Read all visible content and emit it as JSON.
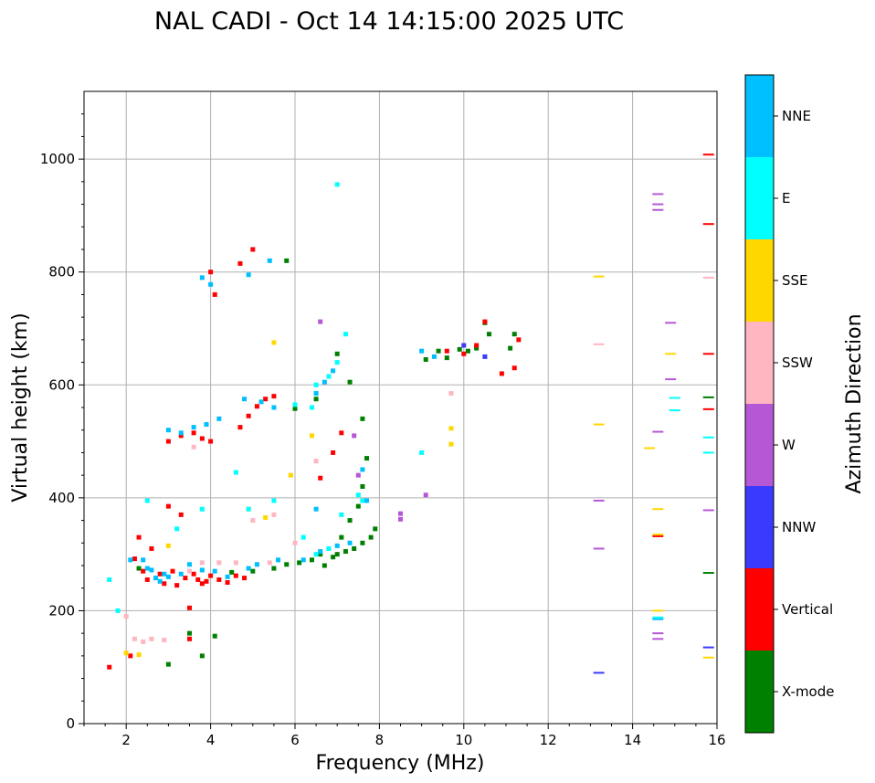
{
  "chart_data": {
    "type": "scatter",
    "title": "NAL CADI - Oct 14 14:15:00 2025 UTC",
    "xlabel": "Frequency (MHz)",
    "ylabel": "Virtual height (km)",
    "xlim": [
      1,
      16
    ],
    "ylim": [
      0,
      1120
    ],
    "xticks": [
      2,
      4,
      6,
      8,
      10,
      12,
      14,
      16
    ],
    "yticks": [
      0,
      200,
      400,
      600,
      800,
      1000
    ],
    "x_tick_labels": [
      "2",
      "4",
      "6",
      "8",
      "10",
      "12",
      "14",
      "16"
    ],
    "y_tick_labels": [
      "0",
      "200",
      "400",
      "600",
      "800",
      "1000"
    ],
    "grid": true,
    "colorbar": {
      "label": "Azimuth Direction",
      "categories": [
        {
          "name": "X-mode",
          "color": "#008000"
        },
        {
          "name": "Vertical",
          "color": "#ff0000"
        },
        {
          "name": "NNW",
          "color": "#3a3aff"
        },
        {
          "name": "W",
          "color": "#b657d6"
        },
        {
          "name": "SSW",
          "color": "#ffb6c1"
        },
        {
          "name": "SSE",
          "color": "#ffd700"
        },
        {
          "name": "E",
          "color": "#00ffff"
        },
        {
          "name": "NNE",
          "color": "#00bfff"
        }
      ]
    },
    "series": [
      {
        "name": "X-mode",
        "points": [
          [
            2.3,
            275
          ],
          [
            3.0,
            105
          ],
          [
            3.5,
            160
          ],
          [
            3.8,
            120
          ],
          [
            4.1,
            155
          ],
          [
            4.5,
            268
          ],
          [
            5.0,
            270
          ],
          [
            5.5,
            275
          ],
          [
            5.8,
            282
          ],
          [
            6.1,
            285
          ],
          [
            6.4,
            290
          ],
          [
            6.7,
            280
          ],
          [
            6.9,
            295
          ],
          [
            7.0,
            300
          ],
          [
            7.2,
            305
          ],
          [
            7.4,
            310
          ],
          [
            7.6,
            320
          ],
          [
            7.8,
            330
          ],
          [
            7.9,
            345
          ],
          [
            6.6,
            300
          ],
          [
            7.1,
            330
          ],
          [
            7.3,
            360
          ],
          [
            7.5,
            385
          ],
          [
            7.6,
            420
          ],
          [
            7.7,
            470
          ],
          [
            7.6,
            540
          ],
          [
            7.3,
            605
          ],
          [
            7.0,
            655
          ],
          [
            6.5,
            575
          ],
          [
            6.0,
            558
          ],
          [
            9.1,
            645
          ],
          [
            9.4,
            660
          ],
          [
            9.6,
            648
          ],
          [
            9.9,
            663
          ],
          [
            10.1,
            660
          ],
          [
            10.3,
            665
          ],
          [
            10.5,
            710
          ],
          [
            10.6,
            690
          ],
          [
            11.1,
            665
          ],
          [
            11.2,
            690
          ],
          [
            15.8,
            578
          ],
          [
            15.8,
            267
          ],
          [
            5.8,
            820
          ]
        ]
      },
      {
        "name": "Vertical",
        "points": [
          [
            1.6,
            100
          ],
          [
            2.1,
            120
          ],
          [
            2.2,
            292
          ],
          [
            2.3,
            330
          ],
          [
            2.4,
            270
          ],
          [
            2.5,
            255
          ],
          [
            2.6,
            310
          ],
          [
            2.8,
            265
          ],
          [
            2.9,
            248
          ],
          [
            3.0,
            385
          ],
          [
            3.1,
            270
          ],
          [
            3.2,
            245
          ],
          [
            3.3,
            370
          ],
          [
            3.4,
            258
          ],
          [
            3.6,
            265
          ],
          [
            3.7,
            255
          ],
          [
            3.8,
            248
          ],
          [
            3.9,
            252
          ],
          [
            4.0,
            262
          ],
          [
            4.2,
            255
          ],
          [
            4.4,
            250
          ],
          [
            4.6,
            262
          ],
          [
            4.8,
            258
          ],
          [
            3.5,
            205
          ],
          [
            3.0,
            500
          ],
          [
            3.3,
            510
          ],
          [
            3.6,
            515
          ],
          [
            3.8,
            505
          ],
          [
            4.0,
            500
          ],
          [
            4.7,
            525
          ],
          [
            4.9,
            545
          ],
          [
            5.1,
            562
          ],
          [
            5.3,
            575
          ],
          [
            5.5,
            580
          ],
          [
            4.0,
            800
          ],
          [
            4.1,
            760
          ],
          [
            4.7,
            815
          ],
          [
            5.0,
            840
          ],
          [
            6.6,
            435
          ],
          [
            6.9,
            480
          ],
          [
            7.1,
            515
          ],
          [
            9.6,
            660
          ],
          [
            10.0,
            655
          ],
          [
            10.3,
            670
          ],
          [
            10.5,
            712
          ],
          [
            10.9,
            620
          ],
          [
            11.2,
            630
          ],
          [
            11.3,
            680
          ],
          [
            14.6,
            332
          ],
          [
            15.8,
            1008
          ],
          [
            15.8,
            885
          ],
          [
            15.8,
            655
          ],
          [
            15.8,
            557
          ],
          [
            3.5,
            150
          ]
        ]
      },
      {
        "name": "NNW",
        "points": [
          [
            10.0,
            670
          ],
          [
            10.5,
            650
          ],
          [
            13.2,
            90
          ],
          [
            15.8,
            135
          ]
        ]
      },
      {
        "name": "W",
        "points": [
          [
            9.1,
            405
          ],
          [
            8.5,
            372
          ],
          [
            8.5,
            362
          ],
          [
            13.2,
            395
          ],
          [
            13.2,
            310
          ],
          [
            14.6,
            938
          ],
          [
            14.6,
            920
          ],
          [
            14.6,
            910
          ],
          [
            14.9,
            710
          ],
          [
            14.9,
            610
          ],
          [
            14.6,
            517
          ],
          [
            15.8,
            378
          ],
          [
            14.6,
            160
          ],
          [
            14.6,
            150
          ],
          [
            7.5,
            440
          ],
          [
            7.4,
            510
          ],
          [
            6.6,
            712
          ]
        ]
      },
      {
        "name": "SSW",
        "points": [
          [
            2.0,
            190
          ],
          [
            2.2,
            150
          ],
          [
            2.4,
            145
          ],
          [
            2.6,
            150
          ],
          [
            2.9,
            148
          ],
          [
            3.5,
            270
          ],
          [
            3.8,
            285
          ],
          [
            4.2,
            285
          ],
          [
            4.6,
            285
          ],
          [
            5.4,
            285
          ],
          [
            3.6,
            490
          ],
          [
            5.0,
            360
          ],
          [
            5.5,
            370
          ],
          [
            6.0,
            320
          ],
          [
            13.2,
            672
          ],
          [
            15.8,
            790
          ],
          [
            9.7,
            585
          ],
          [
            6.5,
            465
          ]
        ]
      },
      {
        "name": "SSE",
        "points": [
          [
            2.0,
            125
          ],
          [
            2.3,
            122
          ],
          [
            3.0,
            315
          ],
          [
            4.9,
            380
          ],
          [
            5.3,
            365
          ],
          [
            5.9,
            440
          ],
          [
            6.4,
            510
          ],
          [
            9.7,
            523
          ],
          [
            9.7,
            495
          ],
          [
            13.2,
            792
          ],
          [
            13.2,
            530
          ],
          [
            14.6,
            380
          ],
          [
            14.6,
            335
          ],
          [
            14.6,
            200
          ],
          [
            14.9,
            655
          ],
          [
            14.4,
            488
          ],
          [
            15.8,
            117
          ],
          [
            5.5,
            675
          ]
        ]
      },
      {
        "name": "E",
        "points": [
          [
            1.6,
            255
          ],
          [
            1.8,
            200
          ],
          [
            2.5,
            395
          ],
          [
            3.2,
            345
          ],
          [
            3.8,
            380
          ],
          [
            4.6,
            445
          ],
          [
            4.9,
            380
          ],
          [
            5.5,
            395
          ],
          [
            6.2,
            330
          ],
          [
            6.5,
            300
          ],
          [
            6.8,
            310
          ],
          [
            7.1,
            370
          ],
          [
            7.5,
            405
          ],
          [
            7.6,
            395
          ],
          [
            6.0,
            565
          ],
          [
            6.4,
            560
          ],
          [
            6.8,
            615
          ],
          [
            7.0,
            640
          ],
          [
            7.2,
            690
          ],
          [
            9.0,
            480
          ],
          [
            14.6,
            188
          ],
          [
            15.0,
            577
          ],
          [
            15.0,
            555
          ],
          [
            15.8,
            507
          ],
          [
            15.8,
            480
          ],
          [
            7.0,
            955
          ],
          [
            6.5,
            600
          ]
        ]
      },
      {
        "name": "NNE",
        "points": [
          [
            2.1,
            290
          ],
          [
            2.4,
            290
          ],
          [
            2.6,
            272
          ],
          [
            2.7,
            258
          ],
          [
            2.8,
            252
          ],
          [
            2.9,
            265
          ],
          [
            3.0,
            260
          ],
          [
            3.3,
            265
          ],
          [
            3.5,
            282
          ],
          [
            3.8,
            272
          ],
          [
            4.1,
            270
          ],
          [
            4.4,
            260
          ],
          [
            4.9,
            275
          ],
          [
            5.1,
            282
          ],
          [
            5.6,
            290
          ],
          [
            6.2,
            290
          ],
          [
            6.6,
            305
          ],
          [
            7.0,
            315
          ],
          [
            7.3,
            320
          ],
          [
            7.7,
            395
          ],
          [
            7.6,
            450
          ],
          [
            6.5,
            380
          ],
          [
            3.0,
            520
          ],
          [
            3.3,
            515
          ],
          [
            3.6,
            525
          ],
          [
            3.9,
            530
          ],
          [
            4.2,
            540
          ],
          [
            4.8,
            575
          ],
          [
            5.2,
            570
          ],
          [
            5.5,
            560
          ],
          [
            3.8,
            790
          ],
          [
            4.0,
            778
          ],
          [
            4.9,
            795
          ],
          [
            5.4,
            820
          ],
          [
            6.5,
            585
          ],
          [
            6.7,
            605
          ],
          [
            6.9,
            625
          ],
          [
            9.0,
            660
          ],
          [
            9.3,
            650
          ],
          [
            14.6,
            185
          ],
          [
            2.5,
            275
          ]
        ]
      }
    ]
  }
}
